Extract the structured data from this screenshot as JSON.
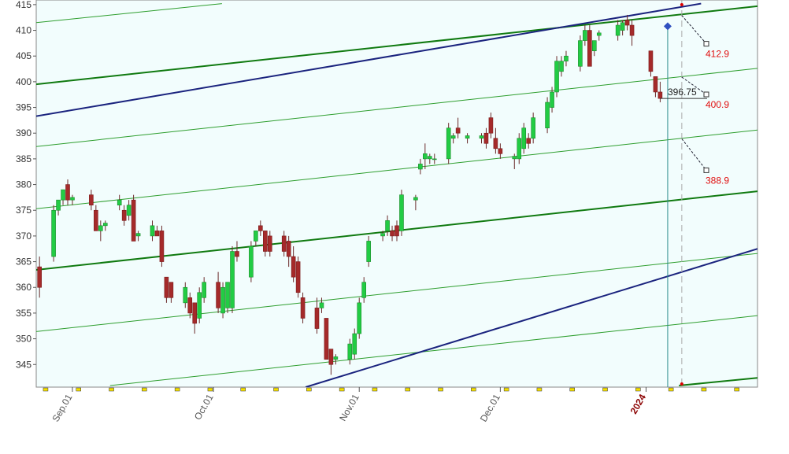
{
  "chart_data": {
    "type": "candlestick",
    "xlim": [
      -7.7,
      145.7
    ],
    "ylim": [
      340.6,
      415.9
    ],
    "yticks": [
      345,
      350,
      355,
      360,
      365,
      370,
      375,
      380,
      385,
      390,
      395,
      400,
      405,
      410,
      415
    ],
    "xticks": [
      {
        "value": 0,
        "label": "Sep.01"
      },
      {
        "value": 30,
        "label": "Oct.01"
      },
      {
        "value": 61,
        "label": "Nov.01"
      },
      {
        "value": 91,
        "label": "Dec.01"
      },
      {
        "value": 122,
        "label": "2024",
        "color": "#8b0000"
      }
    ],
    "up_color": "#22cc44",
    "down_color": "#a52a2a",
    "x": [
      -7,
      -4,
      -3,
      -2,
      -1,
      0,
      4,
      5,
      6,
      7,
      10,
      11,
      12,
      13,
      14,
      17,
      18,
      19,
      20,
      21,
      24,
      25,
      26,
      27,
      28,
      31,
      32,
      33,
      34,
      35,
      38,
      39,
      40,
      41,
      42,
      45,
      46,
      47,
      48,
      49,
      52,
      53,
      54,
      55,
      56,
      59,
      60,
      61,
      62,
      63,
      66,
      67,
      68,
      69,
      70,
      73,
      74,
      75,
      76,
      77,
      80,
      81,
      82,
      84,
      87,
      88,
      89,
      90,
      91,
      94,
      95,
      96,
      97,
      98,
      101,
      102,
      103,
      104,
      105,
      108,
      109,
      110,
      111,
      112,
      116,
      117,
      118,
      119,
      123,
      124,
      125
    ],
    "open": [
      364,
      366,
      375,
      377,
      380,
      377,
      378,
      375,
      371,
      372,
      376,
      375,
      374,
      377,
      370,
      370,
      371,
      371,
      362,
      361,
      357,
      358,
      357,
      354,
      358,
      361,
      355,
      356,
      356,
      367,
      362,
      369,
      372,
      371,
      370,
      370,
      369,
      366,
      365,
      358,
      356,
      356,
      354,
      348,
      346,
      346,
      347,
      351,
      358,
      365,
      370,
      371,
      371,
      372,
      371,
      377,
      383,
      385,
      385,
      385,
      385,
      389,
      391,
      389,
      389,
      390,
      393,
      389,
      387,
      385,
      385,
      387,
      389,
      389,
      391,
      395,
      398,
      402,
      404,
      403,
      408,
      410,
      406,
      409,
      409,
      410,
      412,
      411,
      406,
      401,
      398
    ],
    "high": [
      366,
      376,
      377,
      379,
      381,
      378,
      379,
      376,
      373,
      373,
      378,
      376,
      377,
      378,
      371,
      373,
      372,
      372,
      362,
      361,
      361,
      359,
      357,
      360,
      362,
      363,
      361,
      361,
      368,
      369,
      369,
      371,
      373,
      371,
      371,
      371,
      370,
      368,
      366,
      359,
      358,
      358,
      354,
      348,
      347,
      350,
      352,
      358,
      362,
      370,
      371,
      374,
      372,
      373,
      379,
      378,
      385,
      388,
      386,
      386,
      392,
      390,
      393,
      390,
      390,
      391,
      394,
      391,
      388,
      386,
      390,
      392,
      390,
      394,
      397,
      399,
      405,
      405,
      406,
      409,
      411,
      411,
      408,
      410,
      412,
      412,
      413,
      412,
      406,
      401,
      400
    ],
    "low": [
      358,
      365,
      374,
      376,
      376,
      376,
      375,
      371,
      369,
      371,
      375,
      372,
      373,
      369,
      369,
      369,
      370,
      364,
      357,
      357,
      356,
      354,
      351,
      353,
      357,
      355,
      354,
      355,
      355,
      365,
      361,
      368,
      370,
      366,
      366,
      366,
      364,
      361,
      358,
      353,
      351,
      355,
      346,
      343,
      345,
      345,
      346,
      350,
      357,
      364,
      369,
      370,
      369,
      369,
      370,
      375,
      382,
      383,
      384,
      384,
      384,
      388,
      389,
      388,
      388,
      387,
      389,
      386,
      385,
      383,
      384,
      386,
      387,
      388,
      390,
      394,
      397,
      401,
      403,
      402,
      407,
      403,
      405,
      408,
      408,
      409,
      410,
      407,
      401,
      397,
      396
    ],
    "close": [
      360,
      375,
      377,
      379,
      377,
      377.5,
      376,
      371,
      372,
      372.5,
      377,
      373,
      376,
      369,
      370.5,
      372,
      370,
      365,
      358,
      358,
      360,
      355,
      353,
      359,
      361,
      356,
      360,
      361,
      367,
      366,
      368,
      371,
      371,
      367,
      367,
      367,
      366,
      362,
      359,
      354,
      352,
      357,
      346,
      345,
      346.5,
      349,
      351,
      357,
      361,
      369,
      370.5,
      373,
      370,
      370,
      378,
      377.5,
      384,
      386,
      385.5,
      385,
      391,
      389.5,
      390,
      389.5,
      389.5,
      388,
      390,
      387,
      386,
      385.5,
      389,
      391,
      388,
      393,
      396,
      398,
      404,
      404,
      405,
      408,
      410,
      403,
      408,
      409.5,
      411,
      411.5,
      411,
      409,
      402,
      398,
      396.75
    ],
    "trend_lines": [
      {
        "x": [
          -7.7,
          31.8
        ],
        "y": [
          411.5,
          415.2
        ],
        "color": "#2e9e2e",
        "width": 1
      },
      {
        "x": [
          -7.7,
          145.7
        ],
        "y": [
          399.5,
          414.7
        ],
        "color": "#107a10",
        "width": 2
      },
      {
        "x": [
          -7.7,
          145.7
        ],
        "y": [
          387.4,
          402.6
        ],
        "color": "#2e9e2e",
        "width": 1
      },
      {
        "x": [
          -7.7,
          145.7
        ],
        "y": [
          375.3,
          390.6
        ],
        "color": "#2e9e2e",
        "width": 1
      },
      {
        "x": [
          -7.7,
          145.7
        ],
        "y": [
          363.4,
          378.7
        ],
        "color": "#107a10",
        "width": 2
      },
      {
        "x": [
          -7.7,
          145.7
        ],
        "y": [
          351.4,
          366.6
        ],
        "color": "#2e9e2e",
        "width": 1
      },
      {
        "x": [
          8.0,
          145.7
        ],
        "y": [
          340.9,
          354.5
        ],
        "color": "#2e9e2e",
        "width": 1
      },
      {
        "x": [
          129.0,
          145.7
        ],
        "y": [
          340.9,
          342.4
        ],
        "color": "#107a10",
        "width": 2
      },
      {
        "x": [
          -7.7,
          133.7
        ],
        "y": [
          393.3,
          415.2
        ],
        "color": "#1a237e",
        "width": 2
      },
      {
        "x": [
          49.6,
          145.7
        ],
        "y": [
          340.6,
          367.5
        ],
        "color": "#1a237e",
        "width": 2
      }
    ],
    "cursor": {
      "x": 126.6,
      "y": 410.8
    },
    "projection_x": 129.6,
    "projections": [
      412.9,
      400.9,
      388.9
    ]
  }
}
